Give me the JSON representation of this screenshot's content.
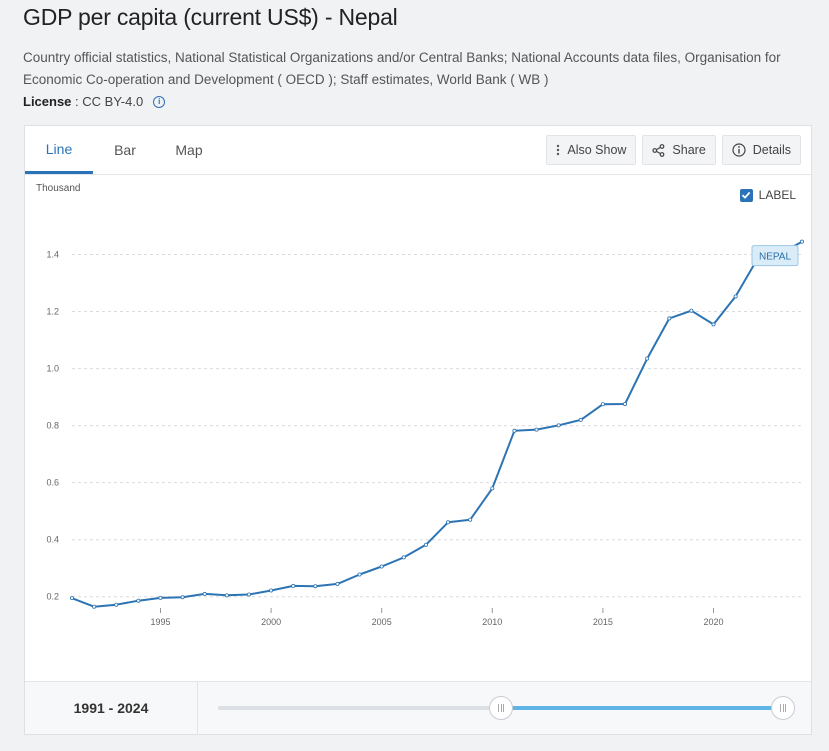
{
  "header": {
    "title": "GDP per capita (current US$) - Nepal",
    "source": "Country official statistics, National Statistical Organizations and/or Central Banks; National Accounts data files, Organisation for Economic Co-operation and Development ( OECD ); Staff estimates, World Bank ( WB )",
    "license_label": "License",
    "license_value": ": CC BY-4.0"
  },
  "tabs": [
    "Line",
    "Bar",
    "Map"
  ],
  "actions": {
    "also_show": "Also Show",
    "share": "Share",
    "details": "Details"
  },
  "chart_meta": {
    "unit": "Thousand",
    "label_toggle": "LABEL",
    "accent": "#2a73b8",
    "line_color": "#2c74b3"
  },
  "range": {
    "label": "1991 - 2024",
    "start_fraction": 0.5,
    "end_fraction": 1.0
  },
  "chart_data": {
    "type": "line",
    "title": "GDP per capita (current US$) - Nepal",
    "ylabel": "Thousand",
    "xlabel": "",
    "ylim": [
      0.15,
      1.5
    ],
    "xlim": [
      1991,
      2024
    ],
    "y_ticks": [
      0.2,
      0.4,
      0.6,
      0.8,
      1.0,
      1.2,
      1.4
    ],
    "y_tick_labels": [
      "0.2",
      "0.4",
      "0.6",
      "0.8",
      "1.0",
      "1.2",
      "1.4"
    ],
    "x_ticks": [
      1995,
      2000,
      2005,
      2010,
      2015,
      2020
    ],
    "x_tick_labels": [
      "1995",
      "2000",
      "2005",
      "2010",
      "2015",
      "2020"
    ],
    "grid": true,
    "series": [
      {
        "name": "NEPAL",
        "x": [
          1991,
          1992,
          1993,
          1994,
          1995,
          1996,
          1997,
          1998,
          1999,
          2000,
          2001,
          2002,
          2003,
          2004,
          2005,
          2006,
          2007,
          2008,
          2009,
          2010,
          2011,
          2012,
          2013,
          2014,
          2015,
          2016,
          2017,
          2018,
          2019,
          2020,
          2021,
          2022,
          2023,
          2024
        ],
        "values": [
          0.195,
          0.165,
          0.172,
          0.186,
          0.196,
          0.198,
          0.21,
          0.205,
          0.208,
          0.222,
          0.238,
          0.237,
          0.245,
          0.278,
          0.306,
          0.338,
          0.382,
          0.461,
          0.47,
          0.58,
          0.782,
          0.786,
          0.801,
          0.82,
          0.875,
          0.876,
          1.035,
          1.176,
          1.203,
          1.155,
          1.253,
          1.387,
          1.403,
          1.445
        ]
      }
    ]
  }
}
